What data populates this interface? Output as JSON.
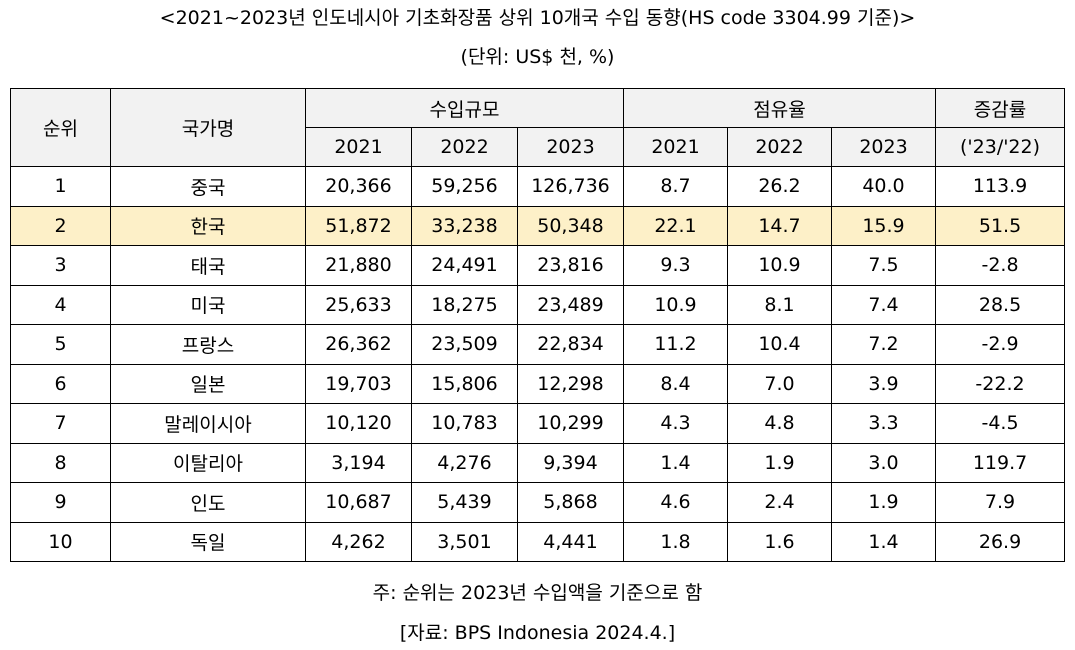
{
  "title": "<2021~2023년 인도네시아 기초화장품 상위 10개국 수입 동향(HS code 3304.99 기준)>",
  "unit": "(단위: US$ 천, %)",
  "colors": {
    "header_bg": "#f2f2f2",
    "highlight_bg": "#fdf0c8",
    "border": "#000000"
  },
  "table": {
    "headers": {
      "rank": "순위",
      "country": "국가명",
      "import_value": "수입규모",
      "share": "점유율",
      "growth_line1": "증감률",
      "growth_line2": "('23/'22)",
      "years": [
        "2021",
        "2022",
        "2023"
      ]
    },
    "highlight_rank": "2",
    "rows": [
      {
        "rank": "1",
        "country": "중국",
        "v2021": "20,366",
        "v2022": "59,256",
        "v2023": "126,736",
        "s2021": "8.7",
        "s2022": "26.2",
        "s2023": "40.0",
        "growth": "113.9"
      },
      {
        "rank": "2",
        "country": "한국",
        "v2021": "51,872",
        "v2022": "33,238",
        "v2023": "50,348",
        "s2021": "22.1",
        "s2022": "14.7",
        "s2023": "15.9",
        "growth": "51.5"
      },
      {
        "rank": "3",
        "country": "태국",
        "v2021": "21,880",
        "v2022": "24,491",
        "v2023": "23,816",
        "s2021": "9.3",
        "s2022": "10.9",
        "s2023": "7.5",
        "growth": "-2.8"
      },
      {
        "rank": "4",
        "country": "미국",
        "v2021": "25,633",
        "v2022": "18,275",
        "v2023": "23,489",
        "s2021": "10.9",
        "s2022": "8.1",
        "s2023": "7.4",
        "growth": "28.5"
      },
      {
        "rank": "5",
        "country": "프랑스",
        "v2021": "26,362",
        "v2022": "23,509",
        "v2023": "22,834",
        "s2021": "11.2",
        "s2022": "10.4",
        "s2023": "7.2",
        "growth": "-2.9"
      },
      {
        "rank": "6",
        "country": "일본",
        "v2021": "19,703",
        "v2022": "15,806",
        "v2023": "12,298",
        "s2021": "8.4",
        "s2022": "7.0",
        "s2023": "3.9",
        "growth": "-22.2"
      },
      {
        "rank": "7",
        "country": "말레이시아",
        "v2021": "10,120",
        "v2022": "10,783",
        "v2023": "10,299",
        "s2021": "4.3",
        "s2022": "4.8",
        "s2023": "3.3",
        "growth": "-4.5"
      },
      {
        "rank": "8",
        "country": "이탈리아",
        "v2021": "3,194",
        "v2022": "4,276",
        "v2023": "9,394",
        "s2021": "1.4",
        "s2022": "1.9",
        "s2023": "3.0",
        "growth": "119.7"
      },
      {
        "rank": "9",
        "country": "인도",
        "v2021": "10,687",
        "v2022": "5,439",
        "v2023": "5,868",
        "s2021": "4.6",
        "s2022": "2.4",
        "s2023": "1.9",
        "growth": "7.9"
      },
      {
        "rank": "10",
        "country": "독일",
        "v2021": "4,262",
        "v2022": "3,501",
        "v2023": "4,441",
        "s2021": "1.8",
        "s2022": "1.6",
        "s2023": "1.4",
        "growth": "26.9"
      }
    ]
  },
  "note": "주: 순위는 2023년 수입액을 기준으로 함",
  "source": "[자료: BPS Indonesia 2024.4.]"
}
